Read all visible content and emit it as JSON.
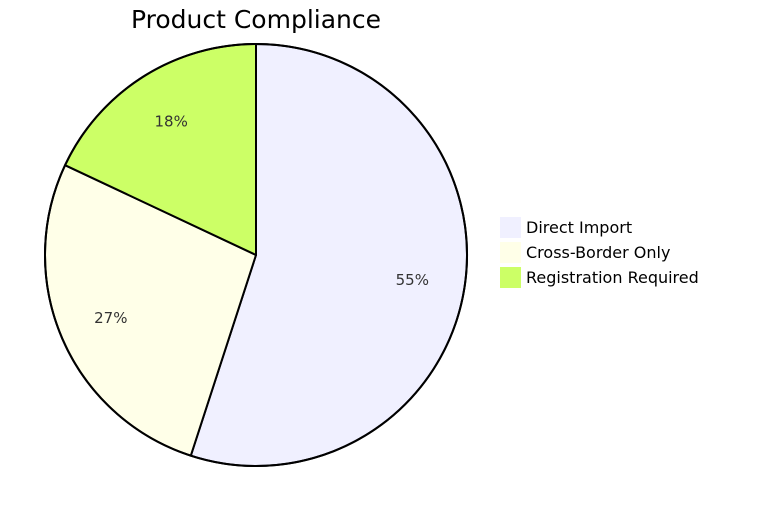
{
  "chart_data": {
    "type": "pie",
    "title": "Product Compliance",
    "slices": [
      {
        "label": "Direct Import",
        "value": 55,
        "display": "55%",
        "color": "#f0f0ff"
      },
      {
        "label": "Cross-Border Only",
        "value": 27,
        "display": "27%",
        "color": "#ffffe8"
      },
      {
        "label": "Registration Required",
        "value": 18,
        "display": "18%",
        "color": "#ccff66"
      }
    ],
    "start_angle": "12 o'clock",
    "direction": "clockwise",
    "legend_placement": "right",
    "outline_color": "#000000"
  }
}
